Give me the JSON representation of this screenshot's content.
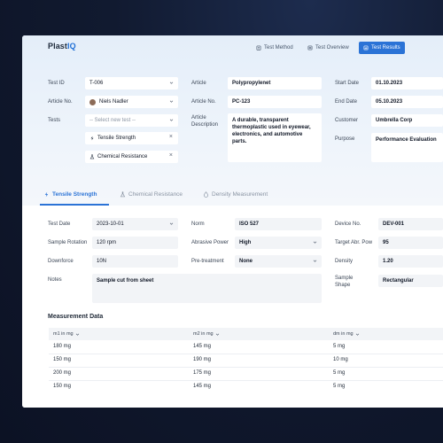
{
  "app": {
    "logo_main": "Plast",
    "logo_accent": "IQ",
    "nav": [
      {
        "label": "Test Method",
        "icon": "clipboard-icon"
      },
      {
        "label": "Test Overview",
        "icon": "list-icon"
      },
      {
        "label": "Test Results",
        "icon": "chart-icon",
        "active": true
      }
    ],
    "accent_color": "#2b73d6"
  },
  "header_form": {
    "test_id": {
      "label": "Test ID",
      "value": "T-006"
    },
    "article_no_left": {
      "label": "Article No.",
      "value": "Niels Nadler"
    },
    "tests": {
      "label": "Tests",
      "placeholder": "-- Select new test --",
      "items": [
        {
          "label": "Tensile Strength",
          "icon": "bolt-icon"
        },
        {
          "label": "Chemical Resistance",
          "icon": "flask-icon"
        }
      ]
    },
    "article": {
      "label": "Article",
      "value": "Polypropylenet"
    },
    "article_no": {
      "label": "Article No.",
      "value": "PC-123"
    },
    "article_description": {
      "label_line1": "Article",
      "label_line2": "Description",
      "value": "A durable, transparent thermoplastic used in eyewear, electronics, and automotive parts."
    },
    "start_date": {
      "label": "Start Date",
      "value": "01.10.2023"
    },
    "end_date": {
      "label": "End Date",
      "value": "05.10.2023"
    },
    "customer": {
      "label": "Customer",
      "value": "Umbrella Corp"
    },
    "purpose": {
      "label": "Purpose",
      "value": "Performance Evaluation"
    }
  },
  "tabs": [
    {
      "label": "Tensile Strength",
      "icon": "bolt-icon",
      "active": true
    },
    {
      "label": "Chemical Resistance",
      "icon": "flask-icon"
    },
    {
      "label": "Density Measurement",
      "icon": "drop-icon"
    }
  ],
  "params": {
    "test_date": {
      "label": "Test Date",
      "value": "2023-10-01"
    },
    "sample_rotation": {
      "label": "Sample Rotation",
      "value": "120 rpm"
    },
    "downforce": {
      "label": "Downforce",
      "value": "10N"
    },
    "notes": {
      "label": "Notes",
      "value": "Sample cut from sheet"
    },
    "norm": {
      "label": "Norm",
      "value": "ISO 527"
    },
    "abrasive_power": {
      "label": "Abrasive Power",
      "value": "High"
    },
    "pre_treatment": {
      "label": "Pre-treatment",
      "value": "None"
    },
    "device_no": {
      "label": "Device No.",
      "value": "DEV-001"
    },
    "target_abr_pow": {
      "label": "Target Abr. Pow",
      "value": "95"
    },
    "density": {
      "label": "Density",
      "value": "1.20"
    },
    "sample_shape": {
      "label_line1": "Sample",
      "label_line2": "Shape",
      "value": "Rectangular"
    }
  },
  "measurement": {
    "title": "Measurement Data",
    "columns": [
      "m1 in mg",
      "m2 in mg",
      "dm in mg"
    ],
    "rows": [
      [
        "180 mg",
        "145 mg",
        "5 mg"
      ],
      [
        "150 mg",
        "190 mg",
        "10 mg"
      ],
      [
        "200 mg",
        "175 mg",
        "5 mg"
      ],
      [
        "150 mg",
        "145 mg",
        "5 mg"
      ]
    ]
  }
}
